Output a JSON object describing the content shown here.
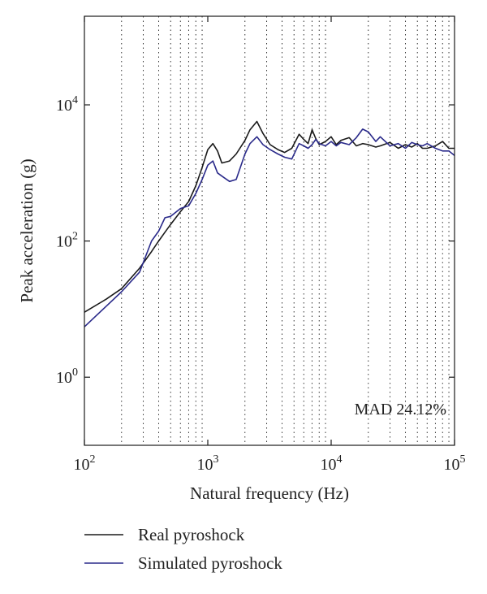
{
  "chart_data": {
    "type": "line",
    "xscale": "log",
    "yscale": "log",
    "xlim": [
      100,
      100000
    ],
    "ylim": [
      0.1,
      200000
    ],
    "xlabel": "Natural frequency (Hz)",
    "ylabel": "Peak acceleration (g)",
    "grid": "dotted vertical (x minor/major)",
    "x_ticks": [
      {
        "base": "10",
        "exp": "2",
        "value": 100
      },
      {
        "base": "10",
        "exp": "3",
        "value": 1000
      },
      {
        "base": "10",
        "exp": "4",
        "value": 10000
      },
      {
        "base": "10",
        "exp": "5",
        "value": 100000
      }
    ],
    "y_ticks": [
      {
        "base": "10",
        "exp": "0",
        "value": 1
      },
      {
        "base": "10",
        "exp": "2",
        "value": 100
      },
      {
        "base": "10",
        "exp": "4",
        "value": 10000
      }
    ],
    "annotation": "MAD 24.12%",
    "legend_position": "below",
    "series": [
      {
        "name": "Real pyroshock",
        "color": "#1a1a1a",
        "x": [
          100,
          150,
          200,
          280,
          350,
          400,
          450,
          500,
          600,
          700,
          800,
          900,
          1000,
          1100,
          1200,
          1300,
          1500,
          1700,
          2000,
          2200,
          2500,
          2800,
          3200,
          3700,
          4200,
          4800,
          5500,
          6000,
          6500,
          7000,
          7500,
          8000,
          9000,
          10000,
          11000,
          12000,
          14000,
          16000,
          18000,
          20000,
          23000,
          25000,
          30000,
          35000,
          40000,
          45000,
          50000,
          55000,
          60000,
          70000,
          80000,
          90000,
          100000
        ],
        "y": [
          9,
          14,
          20,
          40,
          70,
          100,
          135,
          175,
          270,
          380,
          650,
          1200,
          2200,
          2700,
          2100,
          1400,
          1500,
          1900,
          3000,
          4300,
          5700,
          3800,
          2600,
          2200,
          2000,
          2300,
          3700,
          3100,
          2700,
          4300,
          3200,
          2600,
          2900,
          3400,
          2600,
          3000,
          3300,
          2500,
          2700,
          2600,
          2400,
          2500,
          2800,
          2300,
          2600,
          2400,
          2700,
          2300,
          2300,
          2500,
          2900,
          2300,
          2300
        ]
      },
      {
        "name": "Simulated pyroshock",
        "color": "#2a2a8a",
        "x": [
          100,
          150,
          200,
          280,
          350,
          400,
          450,
          500,
          600,
          700,
          800,
          900,
          1000,
          1100,
          1200,
          1300,
          1500,
          1700,
          2000,
          2200,
          2500,
          2800,
          3200,
          3700,
          4200,
          4800,
          5500,
          6000,
          6500,
          7000,
          7500,
          8000,
          9000,
          10000,
          11000,
          12000,
          14000,
          16000,
          18000,
          20000,
          23000,
          25000,
          30000,
          35000,
          40000,
          45000,
          50000,
          55000,
          60000,
          70000,
          80000,
          90000,
          100000
        ],
        "y": [
          5.5,
          11,
          18,
          35,
          100,
          140,
          220,
          230,
          300,
          330,
          500,
          800,
          1300,
          1500,
          1000,
          900,
          750,
          800,
          1900,
          2700,
          3400,
          2600,
          2200,
          1900,
          1700,
          1600,
          2700,
          2500,
          2300,
          2600,
          3100,
          2700,
          2500,
          2900,
          2500,
          2800,
          2600,
          3300,
          4400,
          4000,
          2900,
          3400,
          2500,
          2700,
          2300,
          2800,
          2600,
          2500,
          2700,
          2300,
          2100,
          2100,
          1800
        ]
      }
    ]
  }
}
